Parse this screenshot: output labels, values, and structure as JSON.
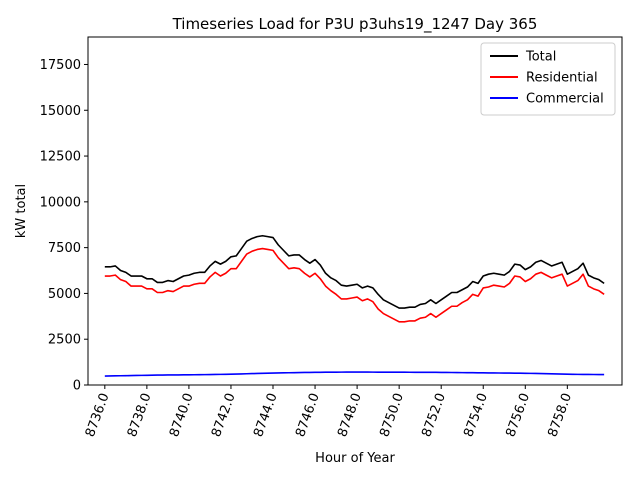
{
  "chart_data": {
    "type": "line",
    "title": "Timeseries Load for P3U p3uhs19_1247  Day 365",
    "xlabel": "Hour of Year",
    "ylabel": "kW total",
    "xlim": [
      8735.2,
      8760.6
    ],
    "ylim": [
      0,
      19000
    ],
    "xticks": [
      8736,
      8738,
      8740,
      8742,
      8744,
      8746,
      8748,
      8750,
      8752,
      8754,
      8756,
      8758
    ],
    "xtick_labels": [
      "8736.0",
      "8738.0",
      "8740.0",
      "8742.0",
      "8744.0",
      "8746.0",
      "8748.0",
      "8750.0",
      "8752.0",
      "8754.0",
      "8756.0",
      "8758.0"
    ],
    "yticks": [
      0,
      2500,
      5000,
      7500,
      10000,
      12500,
      15000,
      17500
    ],
    "ytick_labels": [
      "0",
      "2500",
      "5000",
      "7500",
      "10000",
      "12500",
      "15000",
      "17500"
    ],
    "legend_position": "top-right",
    "x_start": 8736.0,
    "x_step": 0.25,
    "series": [
      {
        "name": "Total",
        "color": "#000000",
        "values": [
          6450,
          6450,
          6500,
          6250,
          6150,
          5950,
          5950,
          5950,
          5800,
          5800,
          5600,
          5600,
          5700,
          5650,
          5800,
          5950,
          6000,
          6100,
          6150,
          6150,
          6500,
          6750,
          6600,
          6750,
          7000,
          7050,
          7450,
          7850,
          8000,
          8100,
          8150,
          8100,
          8050,
          7650,
          7350,
          7050,
          7100,
          7100,
          6850,
          6650,
          6850,
          6550,
          6100,
          5850,
          5700,
          5450,
          5400,
          5450,
          5500,
          5300,
          5400,
          5300,
          4950,
          4650,
          4500,
          4350,
          4200,
          4200,
          4250,
          4250,
          4400,
          4450,
          4650,
          4450,
          4650,
          4850,
          5050,
          5050,
          5200,
          5350,
          5650,
          5550,
          5950,
          6050,
          6100,
          6050,
          6000,
          6200,
          6600,
          6550,
          6300,
          6450,
          6700,
          6800,
          6650,
          6500,
          6600,
          6700,
          6050,
          6200,
          6350,
          6650,
          6000,
          5850,
          5750,
          5550
        ]
      },
      {
        "name": "Residential",
        "color": "#ff0000",
        "values": [
          5950,
          5950,
          6000,
          5750,
          5650,
          5400,
          5400,
          5400,
          5250,
          5250,
          5050,
          5050,
          5150,
          5100,
          5250,
          5400,
          5400,
          5500,
          5550,
          5550,
          5900,
          6150,
          5950,
          6100,
          6350,
          6350,
          6750,
          7150,
          7300,
          7400,
          7450,
          7400,
          7350,
          6950,
          6650,
          6350,
          6400,
          6350,
          6100,
          5900,
          6100,
          5800,
          5400,
          5150,
          4950,
          4700,
          4700,
          4750,
          4800,
          4600,
          4700,
          4550,
          4150,
          3900,
          3750,
          3600,
          3450,
          3450,
          3500,
          3500,
          3650,
          3700,
          3900,
          3700,
          3900,
          4100,
          4300,
          4300,
          4500,
          4650,
          4950,
          4850,
          5300,
          5350,
          5450,
          5400,
          5350,
          5550,
          5950,
          5900,
          5650,
          5800,
          6050,
          6150,
          6000,
          5850,
          5950,
          6050,
          5400,
          5550,
          5700,
          6050,
          5400,
          5250,
          5150,
          4950
        ]
      },
      {
        "name": "Commercial",
        "color": "#0000ff",
        "values": [
          490,
          495,
          500,
          505,
          510,
          515,
          520,
          525,
          530,
          535,
          540,
          545,
          550,
          550,
          552,
          555,
          557,
          560,
          563,
          566,
          570,
          575,
          580,
          585,
          590,
          598,
          606,
          614,
          622,
          630,
          638,
          645,
          652,
          658,
          664,
          669,
          674,
          679,
          684,
          688,
          692,
          695,
          698,
          700,
          702,
          703,
          704,
          705,
          705,
          705,
          704,
          703,
          702,
          701,
          700,
          699,
          698,
          697,
          696,
          695,
          694,
          693,
          692,
          690,
          688,
          685,
          682,
          679,
          676,
          673,
          670,
          667,
          664,
          661,
          658,
          655,
          652,
          649,
          646,
          643,
          640,
          635,
          630,
          625,
          618,
          611,
          604,
          597,
          590,
          585,
          580,
          578,
          576,
          574,
          572,
          570
        ]
      }
    ]
  }
}
